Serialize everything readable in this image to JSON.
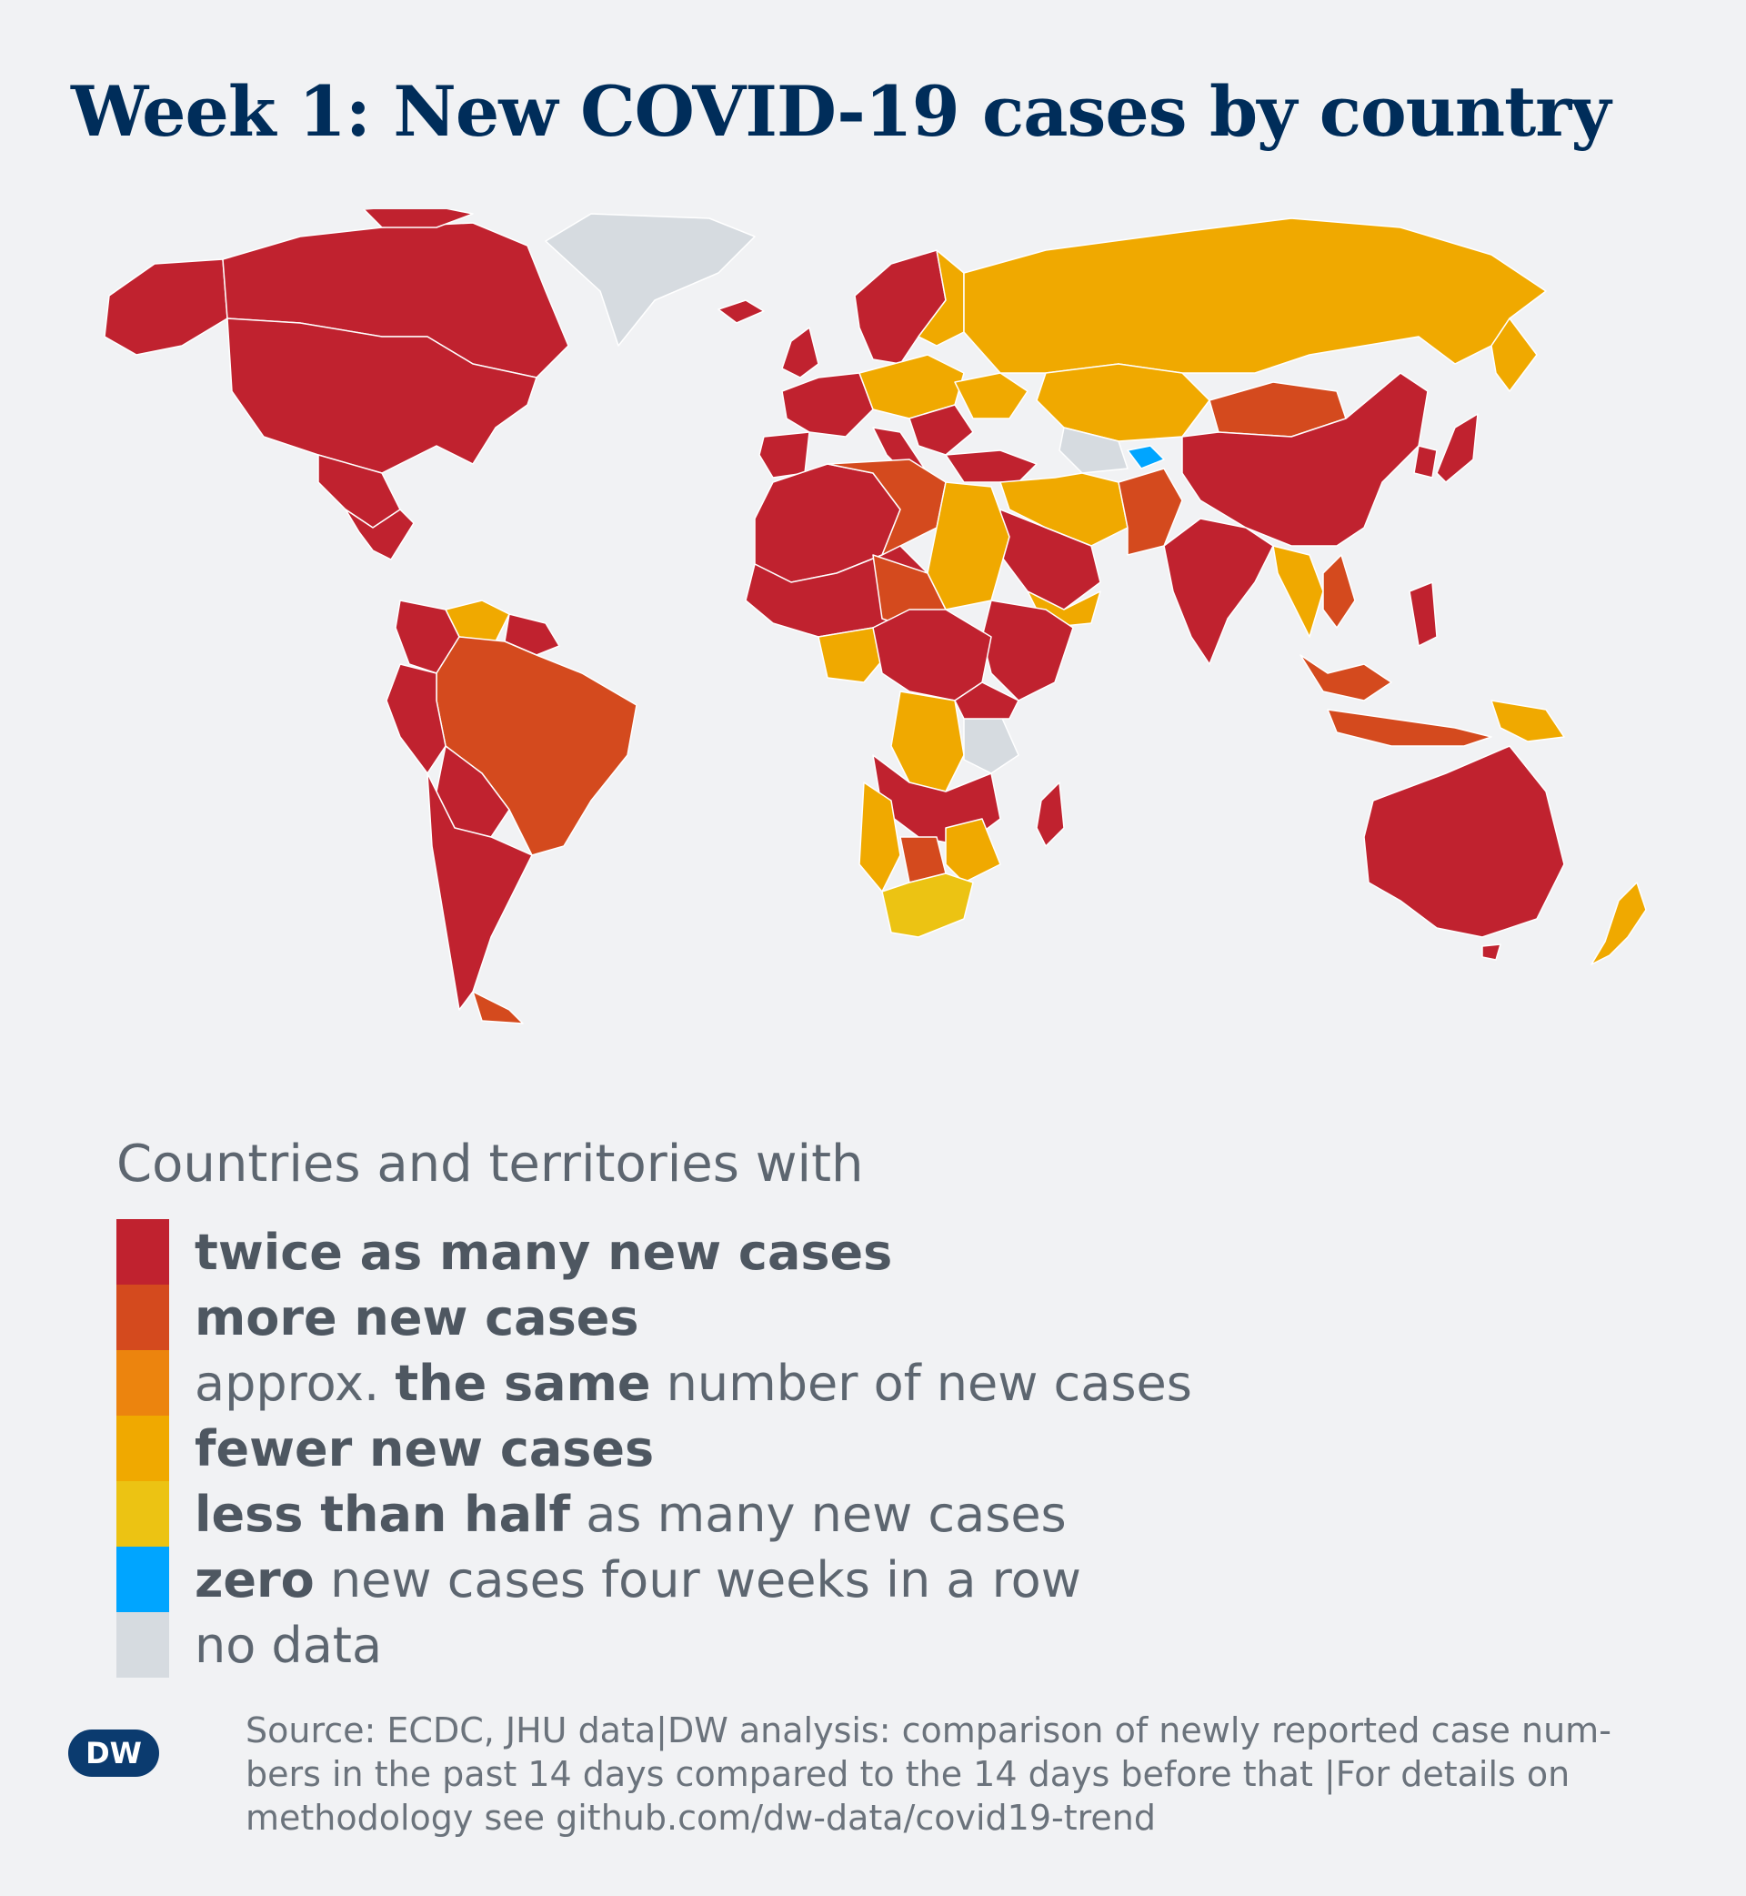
{
  "title": "Week 1: New COVID-19 cases by country",
  "colors": {
    "twice": "#c0222f",
    "more": "#d44a1e",
    "same": "#ec840e",
    "fewer": "#f0a900",
    "less_half": "#ecc313",
    "zero": "#00a5ff",
    "no_data": "#d6dbe0",
    "background": "#f1f2f4",
    "border": "#ffffff"
  },
  "legend": {
    "heading": "Countries and territories with",
    "items": [
      {
        "key": "twice",
        "pre": "",
        "bold": "twice as many new cases",
        "post": ""
      },
      {
        "key": "more",
        "pre": "",
        "bold": "more new cases",
        "post": ""
      },
      {
        "key": "same",
        "pre": "approx. ",
        "bold": "the same",
        "post": " number of new cases"
      },
      {
        "key": "fewer",
        "pre": "",
        "bold": "fewer new cases",
        "post": ""
      },
      {
        "key": "less_half",
        "pre": "",
        "bold": "less than half",
        "post": " as many new cases"
      },
      {
        "key": "zero",
        "pre": "",
        "bold": "zero",
        "post": " new cases four weeks in a row"
      },
      {
        "key": "no_data",
        "pre": "no data",
        "bold": "",
        "post": ""
      }
    ]
  },
  "source": {
    "line1": "Source: ECDC, JHU data|DW analysis: comparison of newly reported case num-",
    "line2": "bers in the past 14 days compared to the 14 days before that |For details on",
    "line3": "methodology see github.com/dw-data/covid19-trend"
  },
  "logo": {
    "text": "DW",
    "icon": "dw-logo-icon"
  }
}
